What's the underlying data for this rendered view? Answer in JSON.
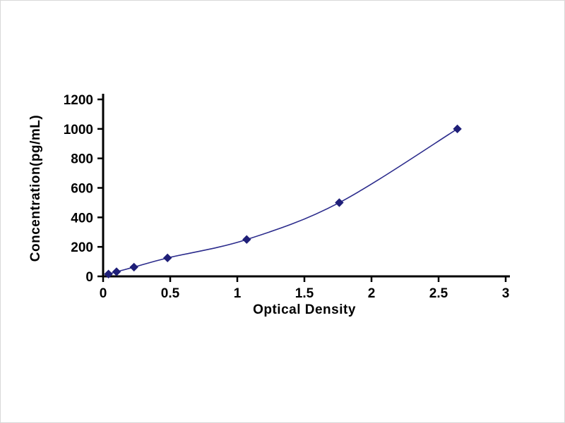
{
  "chart_data": {
    "type": "line",
    "title": "",
    "xlabel": "Optical Density",
    "ylabel": "Concentration(pg/mL)",
    "xlim": [
      0,
      3
    ],
    "ylim": [
      0,
      1200
    ],
    "x_ticks": [
      0,
      0.5,
      1,
      1.5,
      2,
      2.5,
      3
    ],
    "x_tick_labels": [
      "0",
      "0.5",
      "1",
      "1.5",
      "2",
      "2.5",
      "3"
    ],
    "y_ticks": [
      0,
      200,
      400,
      600,
      800,
      1000,
      1200
    ],
    "y_tick_labels": [
      "0",
      "200",
      "400",
      "600",
      "800",
      "1000",
      "1200"
    ],
    "points": [
      [
        0.04,
        15.6
      ],
      [
        0.1,
        31.2
      ],
      [
        0.23,
        62.5
      ],
      [
        0.48,
        125
      ],
      [
        1.07,
        250
      ],
      [
        1.76,
        500
      ],
      [
        2.64,
        1000
      ]
    ],
    "marker": "diamond",
    "grid": false,
    "legend": null,
    "colors": {
      "line": "#2b2b8c",
      "marker": "#1f1f78",
      "axis": "#000000",
      "tick_text": "#000000",
      "background": "#ffffff"
    }
  }
}
